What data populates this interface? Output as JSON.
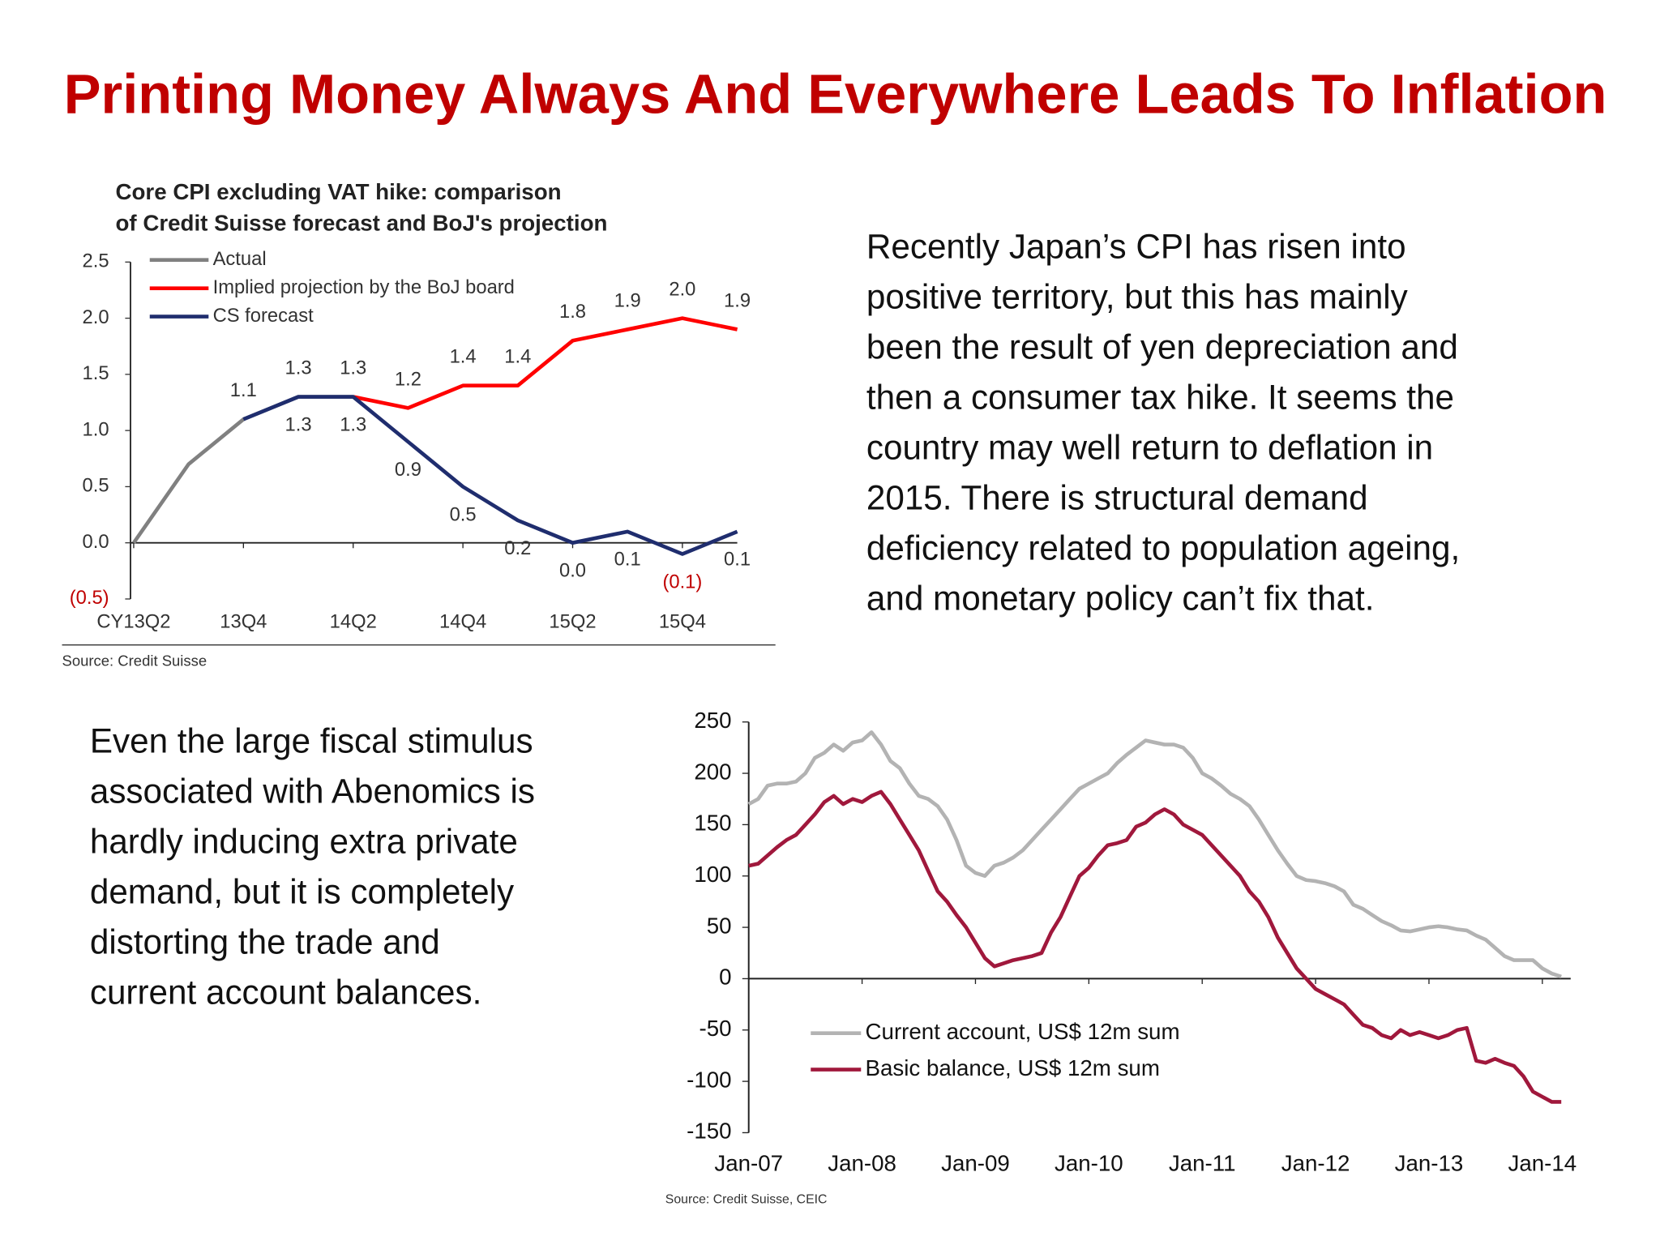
{
  "title": "Printing Money Always And Everywhere Leads To Inflation",
  "paragraphs": [
    [
      "Recently Japan’s CPI has risen into",
      "positive territory, but this has mainly",
      "been the result of yen depreciation and",
      "then a consumer tax hike. It seems the",
      "country may well return to deflation in",
      "2015. There is structural demand",
      "deficiency related to population ageing,",
      "and monetary policy can’t fix that."
    ],
    [
      "Even the large fiscal stimulus",
      "associated with Abenomics is",
      "hardly inducing extra private",
      "demand, but it is completely",
      "distorting the trade and",
      "current account balances."
    ]
  ],
  "chart_data": [
    {
      "type": "line",
      "title": [
        "Core CPI excluding VAT hike: comparison",
        "of Credit Suisse forecast and BoJ's projection"
      ],
      "source": "Source: Credit Suisse",
      "categories": [
        "CY13Q2",
        null,
        "13Q4",
        null,
        "14Q2",
        null,
        "14Q4",
        null,
        "15Q2",
        null,
        "15Q4",
        null
      ],
      "series": [
        {
          "name": "Actual",
          "color": "#808080",
          "values": [
            0.0,
            0.7,
            1.1,
            1.3,
            1.3,
            null,
            null,
            null,
            null,
            null,
            null,
            null
          ],
          "value_labels": [
            null,
            null,
            "1.1",
            "1.3",
            "1.3",
            null,
            null,
            null,
            null,
            null,
            null,
            null
          ]
        },
        {
          "name": "Implied projection by the BoJ board",
          "color": "#ff0000",
          "values": [
            null,
            null,
            null,
            null,
            1.3,
            1.2,
            1.4,
            1.4,
            1.8,
            1.9,
            2.0,
            1.9
          ],
          "value_labels": [
            null,
            null,
            null,
            null,
            null,
            "1.2",
            "1.4",
            "1.4",
            "1.8",
            "1.9",
            "2.0",
            "1.9"
          ]
        },
        {
          "name": "CS forecast",
          "color": "#1f2d6e",
          "values": [
            null,
            null,
            1.1,
            1.3,
            1.3,
            0.9,
            0.5,
            0.2,
            0.0,
            0.1,
            -0.1,
            0.1
          ],
          "value_labels": [
            null,
            null,
            null,
            "1.3",
            "1.3",
            "0.9",
            "0.5",
            "0.2",
            "0.0",
            "0.1",
            "(0.1)",
            "0.1"
          ]
        }
      ],
      "ylim": [
        -0.5,
        2.5
      ],
      "yticks": [
        {
          "value": -0.5,
          "label": "(0.5)"
        },
        {
          "value": 0,
          "label": "0.0"
        },
        0.5,
        {
          "value": 1,
          "label": "1.0"
        },
        1.5,
        {
          "value": 2,
          "label": "2.0"
        },
        2.5
      ],
      "legend": "upper left"
    },
    {
      "type": "line",
      "source": "Source: Credit Suisse, CEIC",
      "x": [
        "2007-01",
        "2007-02",
        "2007-03",
        "2007-04",
        "2007-05",
        "2007-06",
        "2007-07",
        "2007-08",
        "2007-09",
        "2007-10",
        "2007-11",
        "2007-12",
        "2008-01",
        "2008-02",
        "2008-03",
        "2008-04",
        "2008-05",
        "2008-06",
        "2008-07",
        "2008-08",
        "2008-09",
        "2008-10",
        "2008-11",
        "2008-12",
        "2009-01",
        "2009-02",
        "2009-03",
        "2009-04",
        "2009-05",
        "2009-06",
        "2009-07",
        "2009-08",
        "2009-09",
        "2009-10",
        "2009-11",
        "2009-12",
        "2010-01",
        "2010-02",
        "2010-03",
        "2010-04",
        "2010-05",
        "2010-06",
        "2010-07",
        "2010-08",
        "2010-09",
        "2010-10",
        "2010-11",
        "2010-12",
        "2011-01",
        "2011-02",
        "2011-03",
        "2011-04",
        "2011-05",
        "2011-06",
        "2011-07",
        "2011-08",
        "2011-09",
        "2011-10",
        "2011-11",
        "2011-12",
        "2012-01",
        "2012-02",
        "2012-03",
        "2012-04",
        "2012-05",
        "2012-06",
        "2012-07",
        "2012-08",
        "2012-09",
        "2012-10",
        "2012-11",
        "2012-12",
        "2013-01",
        "2013-02",
        "2013-03",
        "2013-04",
        "2013-05",
        "2013-06",
        "2013-07",
        "2013-08",
        "2013-09",
        "2013-10",
        "2013-11",
        "2013-12",
        "2014-01",
        "2014-02",
        "2014-03"
      ],
      "series": [
        {
          "name": "Current account, US$ 12m sum",
          "color": "#b3b3b3",
          "values": [
            170,
            175,
            188,
            190,
            190,
            192,
            200,
            215,
            220,
            228,
            222,
            230,
            232,
            240,
            228,
            212,
            205,
            190,
            178,
            175,
            168,
            155,
            135,
            110,
            103,
            100,
            110,
            113,
            118,
            125,
            135,
            145,
            155,
            165,
            175,
            185,
            190,
            195,
            200,
            210,
            218,
            225,
            232,
            230,
            228,
            228,
            225,
            215,
            200,
            195,
            188,
            180,
            175,
            168,
            155,
            140,
            125,
            112,
            100,
            96,
            95,
            93,
            90,
            85,
            72,
            68,
            62,
            56,
            52,
            47,
            46,
            48,
            50,
            51,
            50,
            48,
            47,
            42,
            38,
            30,
            22,
            18,
            18,
            18,
            10,
            5,
            2
          ]
        },
        {
          "name": "Basic balance, US$ 12m sum",
          "color": "#a0183c",
          "values": [
            110,
            112,
            120,
            128,
            135,
            140,
            150,
            160,
            172,
            178,
            170,
            175,
            172,
            178,
            182,
            170,
            155,
            140,
            125,
            105,
            85,
            75,
            62,
            50,
            35,
            20,
            12,
            15,
            18,
            20,
            22,
            25,
            45,
            60,
            80,
            100,
            108,
            120,
            130,
            132,
            135,
            148,
            152,
            160,
            165,
            160,
            150,
            145,
            140,
            130,
            120,
            110,
            100,
            85,
            75,
            60,
            40,
            25,
            10,
            0,
            -10,
            -15,
            -20,
            -25,
            -35,
            -45,
            -48,
            -55,
            -58,
            -50,
            -55,
            -52,
            -55,
            -58,
            -55,
            -50,
            -48,
            -80,
            -82,
            -78,
            -82,
            -85,
            -95,
            -110,
            -115,
            -120,
            -120
          ]
        }
      ],
      "xlim": [
        "2007-01",
        "2014-04"
      ],
      "xticks": [
        {
          "value": "2007-01",
          "label": "Jan-07"
        },
        {
          "value": "2008-01",
          "label": "Jan-08"
        },
        {
          "value": "2009-01",
          "label": "Jan-09"
        },
        {
          "value": "2010-01",
          "label": "Jan-10"
        },
        {
          "value": "2011-01",
          "label": "Jan-11"
        },
        {
          "value": "2012-01",
          "label": "Jan-12"
        },
        {
          "value": "2013-01",
          "label": "Jan-13"
        },
        {
          "value": "2014-01",
          "label": "Jan-14"
        }
      ],
      "ylim": [
        -150,
        250
      ],
      "yticks": [
        -150,
        -100,
        -50,
        0,
        50,
        100,
        150,
        200,
        250
      ],
      "legend": "lower left"
    }
  ]
}
